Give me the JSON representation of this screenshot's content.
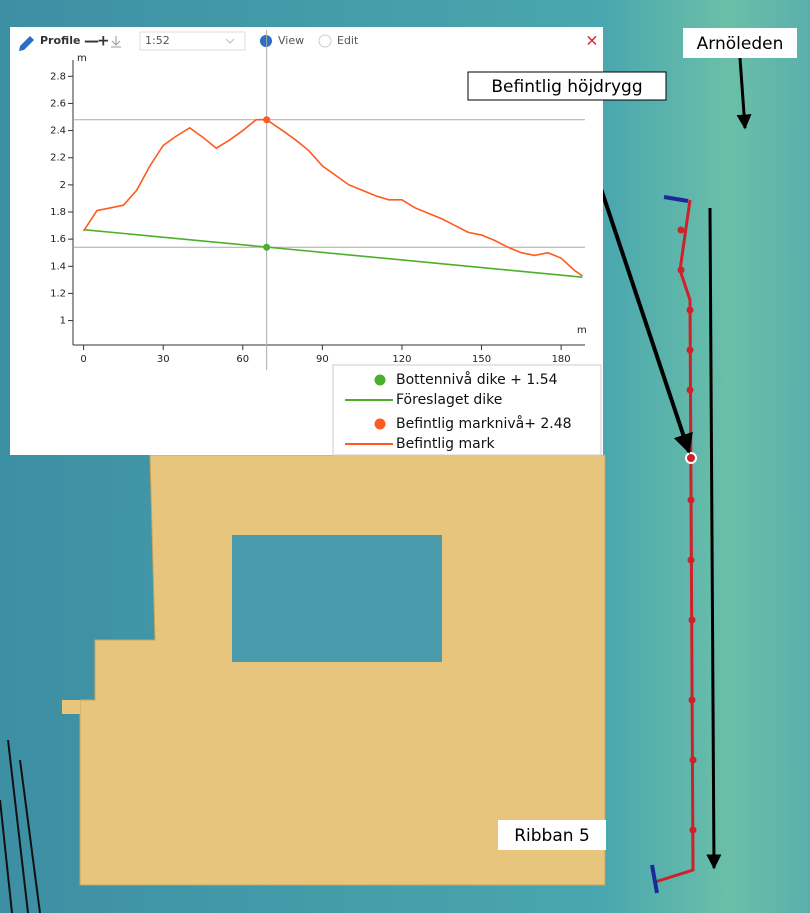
{
  "toolbar": {
    "title": "Profile",
    "scale": "1:52",
    "modes": [
      "View",
      "Edit"
    ]
  },
  "map_labels": {
    "road": "Arnöleden",
    "ridge": "Befintlig höjdrygg",
    "plot": "Ribban 5"
  },
  "chart_data": {
    "type": "line",
    "y_label": "m",
    "x_label": "m",
    "xlim": [
      -4,
      189
    ],
    "ylim": [
      0.82,
      2.92
    ],
    "xticks": [
      0,
      30,
      60,
      90,
      120,
      150,
      180
    ],
    "yticks": [
      1,
      1.2,
      1.4,
      1.6,
      1.8,
      2,
      2.2,
      2.4,
      2.6,
      2.8
    ],
    "grid": false,
    "series": [
      {
        "name": "Befintlig mark",
        "color": "#ff5a1f",
        "x": [
          0,
          5,
          10,
          15,
          20,
          25,
          30,
          35,
          40,
          45,
          50,
          55,
          60,
          65,
          69,
          75,
          80,
          85,
          90,
          95,
          100,
          105,
          110,
          115,
          120,
          125,
          130,
          135,
          140,
          145,
          150,
          155,
          160,
          165,
          170,
          175,
          180,
          185,
          188
        ],
        "values": [
          1.66,
          1.81,
          1.83,
          1.85,
          1.96,
          2.14,
          2.29,
          2.36,
          2.42,
          2.35,
          2.27,
          2.33,
          2.4,
          2.48,
          2.48,
          2.4,
          2.33,
          2.25,
          2.14,
          2.07,
          2.0,
          1.96,
          1.92,
          1.89,
          1.89,
          1.83,
          1.79,
          1.75,
          1.7,
          1.65,
          1.63,
          1.59,
          1.54,
          1.5,
          1.48,
          1.5,
          1.46,
          1.37,
          1.33
        ]
      },
      {
        "name": "Föreslaget dike",
        "color": "#4caf2a",
        "x": [
          0,
          188
        ],
        "values": [
          1.67,
          1.32
        ]
      }
    ],
    "markers": [
      {
        "name": "Bottennivå dike + 1.54",
        "color": "#4caf2a",
        "x": 69,
        "y": 1.54
      },
      {
        "name": "Befintlig marknivå+ 2.48",
        "color": "#ff5a1f",
        "x": 69,
        "y": 2.48
      }
    ]
  }
}
